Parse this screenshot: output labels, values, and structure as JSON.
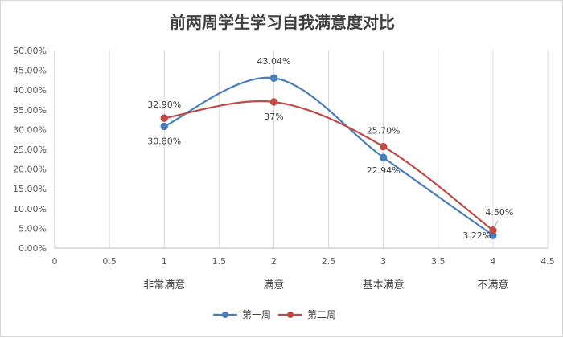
{
  "chart_data": {
    "type": "scatter",
    "title": "前两周学生学习自我满意度对比",
    "xlim": [
      0,
      4.5
    ],
    "ylim": [
      0,
      0.5
    ],
    "x_ticks": [
      "0",
      "0.5",
      "1",
      "1.5",
      "2",
      "2.5",
      "3",
      "3.5",
      "4",
      "4.5"
    ],
    "y_ticks": [
      "0.00%",
      "5.00%",
      "10.00%",
      "15.00%",
      "20.00%",
      "25.00%",
      "30.00%",
      "35.00%",
      "40.00%",
      "45.00%",
      "50.00%"
    ],
    "categories": [
      "非常满意",
      "满意",
      "基本满意",
      "不满意"
    ],
    "x": [
      1,
      2,
      3,
      4
    ],
    "grid": "vertical",
    "legend_position": "bottom",
    "series": [
      {
        "name": "第一周",
        "color": "#4a7ebb",
        "values": [
          0.308,
          0.4304,
          0.2294,
          0.0322
        ],
        "labels": [
          "30.80%",
          "43.04%",
          "22.94%",
          "3.22%"
        ]
      },
      {
        "name": "第二周",
        "color": "#be4b48",
        "values": [
          0.329,
          0.37,
          0.257,
          0.045
        ],
        "labels": [
          "32.90%",
          "37%",
          "25.70%",
          "4.50%"
        ]
      }
    ]
  }
}
